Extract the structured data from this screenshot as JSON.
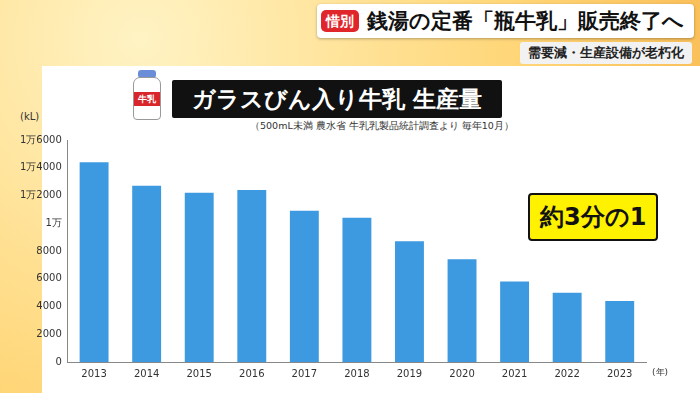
{
  "header": {
    "badge": "惜別",
    "headline": "銭湯の定番「瓶牛乳」販売終了へ",
    "subheadline": "需要減・生産設備が老朽化"
  },
  "chart_data": {
    "type": "bar",
    "title": "ガラスびん入り牛乳 生産量",
    "subtitle": "（500mL未満 農水省 牛乳乳製品統計調査より 毎年10月）",
    "y_label": "(kL)",
    "x_label": "(年)",
    "icon_label": "牛乳",
    "annotations": [
      "約3分の1"
    ],
    "categories": [
      "2013",
      "2014",
      "2015",
      "2016",
      "2017",
      "2018",
      "2019",
      "2020",
      "2021",
      "2022",
      "2023"
    ],
    "values": [
      14400,
      12700,
      12200,
      12400,
      10900,
      10400,
      8700,
      7400,
      5800,
      5000,
      4400
    ],
    "color": "#3d9ae0",
    "ylim": [
      0,
      16000
    ],
    "yticks": [
      0,
      2000,
      4000,
      6000,
      8000,
      {
        "value": 10000,
        "label": "1万"
      },
      {
        "value": 12000,
        "label": "1万2000"
      },
      {
        "value": 14000,
        "label": "1万4000"
      },
      {
        "value": 16000,
        "label": "1万6000"
      }
    ],
    "grid": false
  }
}
